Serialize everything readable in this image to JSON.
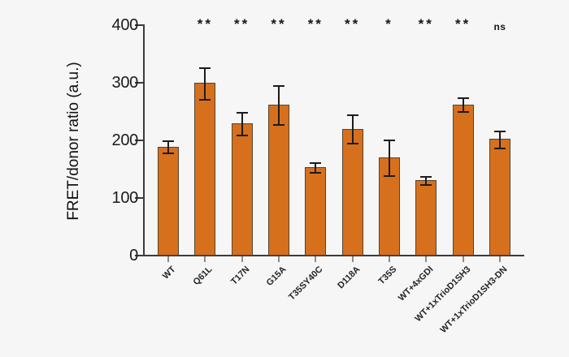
{
  "chart_data": {
    "type": "bar",
    "title": "",
    "ylabel": "FRET/donor ratio (a.u.)",
    "xlabel": "",
    "ylim": [
      0,
      400
    ],
    "yticks": [
      0,
      100,
      200,
      300,
      400
    ],
    "grid": false,
    "legend": "none",
    "categories": [
      "WT",
      "Q61L",
      "T17N",
      "G15A",
      "T35SY40C",
      "D118A",
      "T35S",
      "WT+4xGDI",
      "WT+1xTrioD1SH3",
      "WT+1xTrioD1SH3-DN"
    ],
    "values": [
      188,
      298,
      228,
      261,
      152,
      219,
      169,
      129,
      261,
      201
    ],
    "errors": [
      11,
      27,
      20,
      34,
      8,
      25,
      31,
      7,
      12,
      15
    ],
    "significance": [
      "",
      "**",
      "**",
      "**",
      "**",
      "**",
      "*",
      "**",
      "**",
      "ns"
    ]
  },
  "colors": {
    "background": "#f5f6f5",
    "bar_fill": "#d7701d",
    "bar_edge": "#55432e",
    "error_bar": "#1c1c1c",
    "axis": "#3b3b3b",
    "tick_label": "#1b1b1b",
    "x_tick_mark": "#8b8b8b"
  }
}
